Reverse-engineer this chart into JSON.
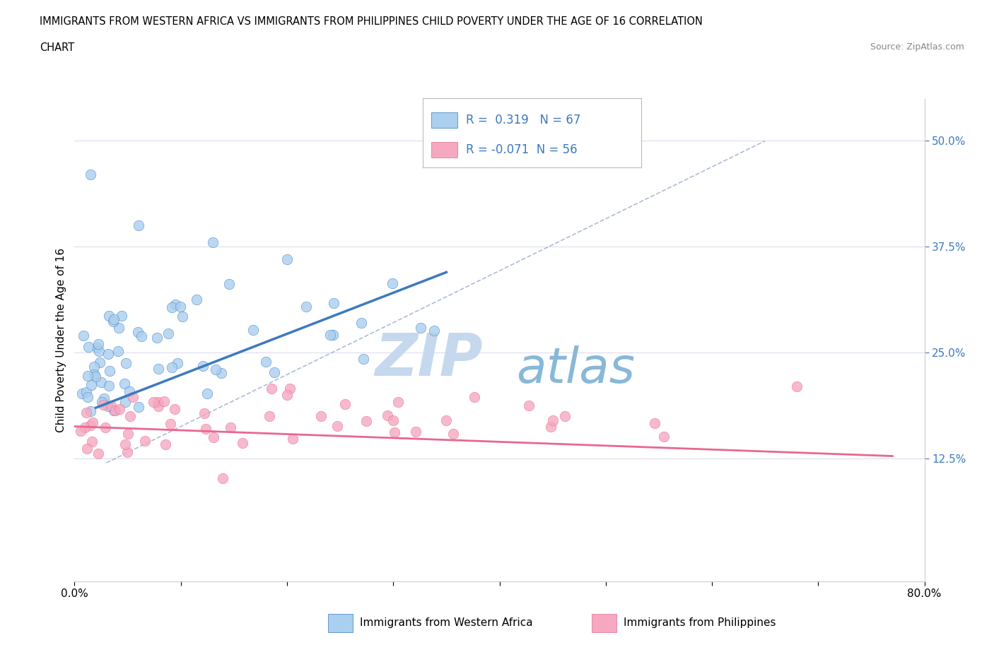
{
  "title_line1": "IMMIGRANTS FROM WESTERN AFRICA VS IMMIGRANTS FROM PHILIPPINES CHILD POVERTY UNDER THE AGE OF 16 CORRELATION",
  "title_line2": "CHART",
  "source_text": "Source: ZipAtlas.com",
  "ylabel": "Child Poverty Under the Age of 16",
  "xlim": [
    0.0,
    0.8
  ],
  "ylim": [
    -0.02,
    0.55
  ],
  "yticks_right": [
    0.125,
    0.25,
    0.375,
    0.5
  ],
  "yticklabels_right": [
    "12.5%",
    "25.0%",
    "37.5%",
    "50.0%"
  ],
  "series1_name": "Immigrants from Western Africa",
  "series1_color": "#aacfef",
  "series1_R": 0.319,
  "series1_N": 67,
  "series2_name": "Immigrants from Philippines",
  "series2_color": "#f5a8c0",
  "series2_R": -0.071,
  "series2_N": 56,
  "trend1_color": "#3d7abf",
  "trend2_color": "#e86890",
  "dashed_line_color": "#99aacc",
  "background_color": "#ffffff",
  "watermark_zip": "ZIP",
  "watermark_atlas": "atlas",
  "watermark_color_zip": "#c8ddf0",
  "watermark_color_atlas": "#aac8e8"
}
